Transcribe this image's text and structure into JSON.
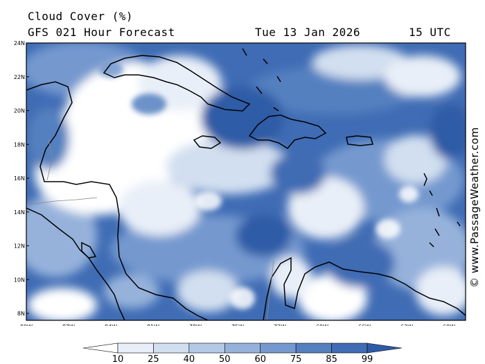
{
  "title": "Cloud Cover (%)",
  "subtitle": "GFS 021 Hour Forecast",
  "valid_date": "Tue 13 Jan 2026",
  "valid_time": "15 UTC",
  "credit": "© www.PassageWeather.com",
  "lat_labels": [
    "24N",
    "22N",
    "20N",
    "18N",
    "16N",
    "14N",
    "12N",
    "10N",
    "8N"
  ],
  "lon_labels": [
    "90W",
    "87W",
    "84W",
    "81W",
    "78W",
    "75W",
    "72W",
    "69W",
    "66W",
    "63W",
    "60W"
  ],
  "map": {
    "lon_range": [
      -90,
      -59.5
    ],
    "lat_range": [
      7.5,
      24
    ]
  },
  "colorbar": {
    "ticks": [
      "10",
      "25",
      "40",
      "50",
      "60",
      "75",
      "85",
      "99"
    ],
    "colors": [
      "#ffffff",
      "#e9eff8",
      "#d2dff0",
      "#b4c9e6",
      "#96b2db",
      "#7599cf",
      "#5580c0",
      "#3f6cb4",
      "#2e5ba6"
    ]
  }
}
